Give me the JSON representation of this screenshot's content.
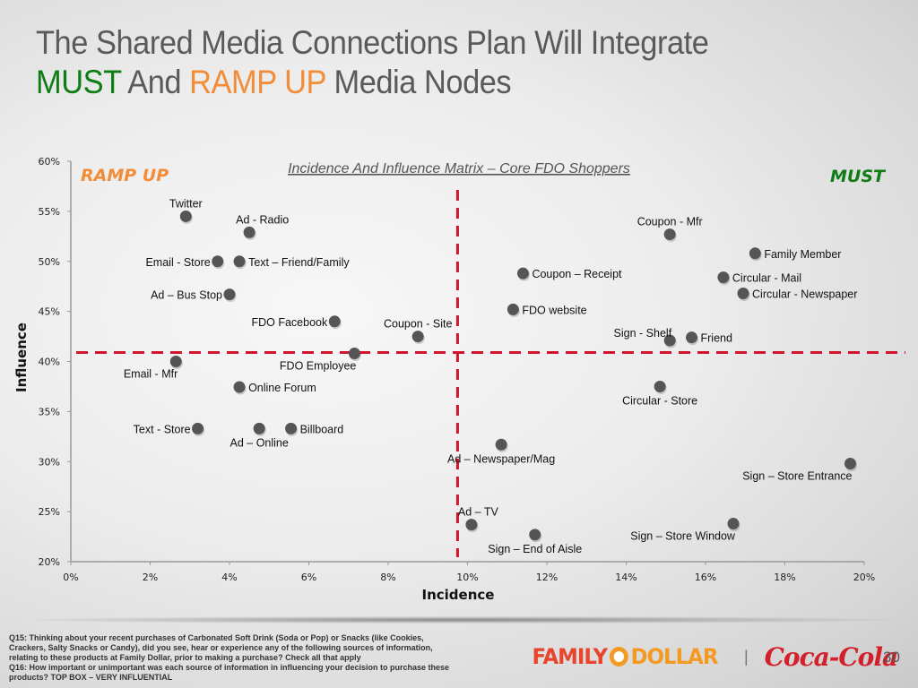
{
  "slide": {
    "title_line1": "The Shared Media Connections Plan Will Integrate",
    "title_must": "MUST",
    "title_and": " And ",
    "title_ramp": "RAMP UP",
    "title_rest": " Media Nodes",
    "colors": {
      "must": "#0f7d16",
      "ramp_up": "#f28c38",
      "text": "#5a5a5a",
      "reference_line": "#d0142c",
      "point": "#555555"
    }
  },
  "chart_data": {
    "type": "scatter",
    "title": "Incidence And Influence Matrix – Core FDO Shoppers",
    "xlabel": "Incidence",
    "ylabel": "Influence",
    "xlim": [
      0,
      20
    ],
    "ylim": [
      20,
      60
    ],
    "x_ticks": [
      "0%",
      "2%",
      "4%",
      "6%",
      "8%",
      "10%",
      "12%",
      "14%",
      "16%",
      "18%",
      "20%"
    ],
    "y_ticks": [
      "20%",
      "25%",
      "30%",
      "35%",
      "40%",
      "45%",
      "50%",
      "55%",
      "60%"
    ],
    "x_tick_values": [
      0,
      2,
      4,
      6,
      8,
      10,
      12,
      14,
      16,
      18,
      20
    ],
    "y_tick_values": [
      20,
      25,
      30,
      35,
      40,
      45,
      50,
      55,
      60
    ],
    "grid": false,
    "quadrant_labels": {
      "top_left": "RAMP UP",
      "top_right": "MUST"
    },
    "reference_lines": {
      "x": 9.75,
      "y": 40.9
    },
    "points": [
      {
        "label": "Twitter",
        "x": 2.9,
        "y": 54.5,
        "pos": "above"
      },
      {
        "label": "Ad - Radio",
        "x": 4.5,
        "y": 52.9,
        "pos": "above-right"
      },
      {
        "label": "Email - Store",
        "x": 3.7,
        "y": 50.0,
        "pos": "left"
      },
      {
        "label": "Text – Friend/Family",
        "x": 4.25,
        "y": 50.0,
        "pos": "right"
      },
      {
        "label": "Ad – Bus Stop",
        "x": 4.0,
        "y": 46.7,
        "pos": "left"
      },
      {
        "label": "FDO Facebook",
        "x": 6.65,
        "y": 44.0,
        "pos": "left"
      },
      {
        "label": "Coupon - Site",
        "x": 8.75,
        "y": 42.5,
        "pos": "above"
      },
      {
        "label": "FDO Employee",
        "x": 7.15,
        "y": 40.8,
        "pos": "below-left"
      },
      {
        "label": "Email - Mfr",
        "x": 2.65,
        "y": 40.0,
        "pos": "below-left"
      },
      {
        "label": "Online Forum",
        "x": 4.25,
        "y": 37.45,
        "pos": "right"
      },
      {
        "label": "Text - Store",
        "x": 3.2,
        "y": 33.3,
        "pos": "left"
      },
      {
        "label": "Ad – Online",
        "x": 4.75,
        "y": 33.3,
        "pos": "below"
      },
      {
        "label": "Billboard",
        "x": 5.55,
        "y": 33.3,
        "pos": "right"
      },
      {
        "label": "Coupon - Mfr",
        "x": 15.1,
        "y": 52.7,
        "pos": "above"
      },
      {
        "label": "Family Member",
        "x": 17.25,
        "y": 50.8,
        "pos": "right"
      },
      {
        "label": "Coupon – Receipt",
        "x": 11.4,
        "y": 48.8,
        "pos": "right"
      },
      {
        "label": "Circular - Mail",
        "x": 16.45,
        "y": 48.4,
        "pos": "right"
      },
      {
        "label": "Circular - Newspaper",
        "x": 16.95,
        "y": 46.8,
        "pos": "right"
      },
      {
        "label": "FDO website",
        "x": 11.15,
        "y": 45.2,
        "pos": "right"
      },
      {
        "label": "Sign - Shelf",
        "x": 15.1,
        "y": 42.1,
        "pos": "above-left"
      },
      {
        "label": "Friend",
        "x": 15.65,
        "y": 42.4,
        "pos": "right"
      },
      {
        "label": "Circular - Store",
        "x": 14.85,
        "y": 37.5,
        "pos": "below"
      },
      {
        "label": "Ad – Newspaper/Mag",
        "x": 10.85,
        "y": 31.7,
        "pos": "below"
      },
      {
        "label": "Sign – Store Entrance",
        "x": 19.65,
        "y": 29.8,
        "pos": "below-left"
      },
      {
        "label": "Ad – TV",
        "x": 10.1,
        "y": 23.7,
        "pos": "above-right"
      },
      {
        "label": "Sign – End of Aisle",
        "x": 11.7,
        "y": 22.7,
        "pos": "below"
      },
      {
        "label": "Sign – Store Window",
        "x": 16.7,
        "y": 23.8,
        "pos": "below-left"
      }
    ]
  },
  "footer": {
    "footnote_lines": [
      "Q15: Thinking about your recent purchases of Carbonated Soft Drink (Soda or Pop) or Snacks (like Cookies,",
      "Crackers, Salty Snacks or Candy), did you see, hear or experience any of the following sources of information,",
      "relating to these products at Family Dollar, prior to making a purchase? Check all that apply",
      "Q16: How important or unimportant was each source of information in influencing your decision to purchase these",
      "products?  TOP BOX – VERY INFLUENTIAL"
    ],
    "logo_family": "FAMILY",
    "logo_dollar": "DOLLAR",
    "separator": "|",
    "logo_cocacola": "Coca-Cola",
    "page_number": "30"
  }
}
